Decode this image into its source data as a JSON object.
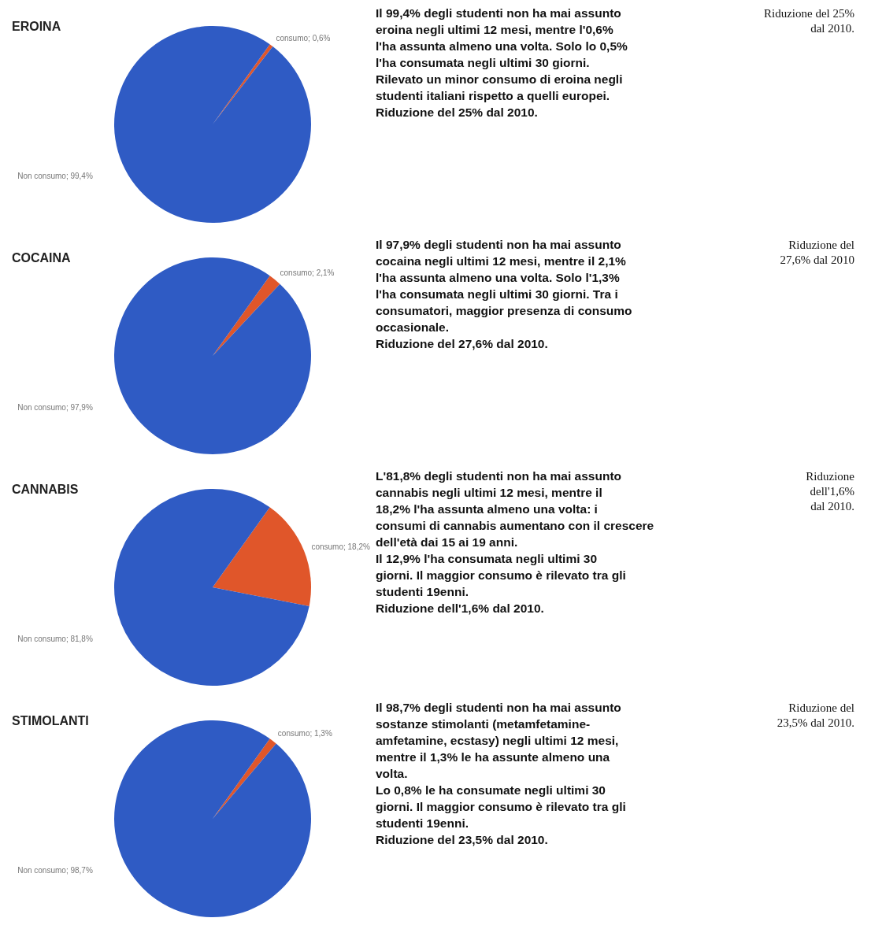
{
  "chart_data": [
    {
      "type": "pie",
      "title": "EROINA",
      "categories": [
        "consumo",
        "Non consumo"
      ],
      "values": [
        0.6,
        99.4
      ],
      "colors": [
        "#e0562a",
        "#2f5bc4"
      ],
      "value_labels": [
        "0,6%",
        "99,4%"
      ],
      "annotations": [
        "Il 99,4% degli studenti non ha mai assunto eroina negli ultimi 12 mesi, mentre l'0,6% l'ha assunta almeno una volta. Solo lo 0,5% l'ha consumata negli ultimi 30 giorni. Rilevato un minor consumo di eroina negli studenti italiani rispetto a quelli europei.\nRiduzione del 25% dal 2010.",
        "Riduzione del 25%\ndal 2010."
      ]
    },
    {
      "type": "pie",
      "title": "COCAINA",
      "categories": [
        "consumo",
        "Non consumo"
      ],
      "values": [
        2.1,
        97.9
      ],
      "colors": [
        "#e0562a",
        "#2f5bc4"
      ],
      "value_labels": [
        "2,1%",
        "97,9%"
      ],
      "annotations": [
        "Il 97,9% degli studenti non ha mai assunto cocaina negli ultimi 12 mesi, mentre il 2,1% l'ha assunta almeno una volta. Solo l'1,3% l'ha consumata negli ultimi 30 giorni. Tra i consumatori, maggior presenza di consumo occasionale.\nRiduzione del 27,6% dal 2010.",
        "Riduzione del\n27,6% dal 2010"
      ]
    },
    {
      "type": "pie",
      "title": "CANNABIS",
      "categories": [
        "consumo",
        "Non consumo"
      ],
      "values": [
        18.2,
        81.8
      ],
      "colors": [
        "#e0562a",
        "#2f5bc4"
      ],
      "value_labels": [
        "18,2%",
        "81,8%"
      ],
      "annotations": [
        "L'81,8% degli studenti non ha mai assunto cannabis negli ultimi 12 mesi, mentre il 18,2% l'ha assunta almeno una volta: i consumi di cannabis aumentano con il crescere dell'età dai 15 ai 19 anni.\nIl 12,9% l'ha consumata negli ultimi 30 giorni. Il maggior consumo è rilevato tra gli studenti 19enni.\nRiduzione dell'1,6% dal 2010.",
        "Riduzione\ndell'1,6%\ndal 2010."
      ]
    },
    {
      "type": "pie",
      "title": "STIMOLANTI",
      "categories": [
        "consumo",
        "Non consumo"
      ],
      "values": [
        1.3,
        98.7
      ],
      "colors": [
        "#e0562a",
        "#2f5bc4"
      ],
      "value_labels": [
        "1,3%",
        "98,7%"
      ],
      "annotations": [
        "Il 98,7% degli studenti non ha mai assunto sostanze stimolanti (metamfetamine-amfetamine, ecstasy) negli ultimi 12 mesi, mentre il 1,3% le ha assunte almeno una volta.\nLo 0,8% le ha consumate negli ultimi 30 giorni. Il maggior consumo è rilevato tra gli studenti 19enni.\nRiduzione del 23,5% dal 2010.",
        "Riduzione del\n23,5% dal 2010."
      ]
    }
  ]
}
